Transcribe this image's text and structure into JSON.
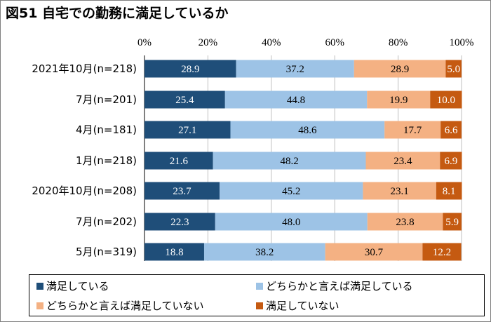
{
  "title": "図51 自宅での勤務に満足しているか",
  "chart_data": {
    "type": "bar",
    "orientation": "horizontal",
    "stacked": "percent",
    "title": "図51 自宅での勤務に満足しているか",
    "categories": [
      "2021年10月(n=218)",
      "7月(n=201)",
      "4月(n=181)",
      "1月(n=218)",
      "2020年10月(n=208)",
      "7月(n=202)",
      "5月(n=319)"
    ],
    "x_ticks": [
      "0%",
      "20%",
      "40%",
      "60%",
      "80%",
      "100%"
    ],
    "xlim": [
      0,
      100
    ],
    "grid": "vertical",
    "legend_position": "bottom",
    "series": [
      {
        "name": "満足している",
        "color": "#1f4e79",
        "label_color": "#ffffff",
        "values": [
          28.9,
          25.4,
          27.1,
          21.6,
          23.7,
          22.3,
          18.8
        ]
      },
      {
        "name": "どちらかと言えば満足している",
        "color": "#9dc3e6",
        "label_color": "#000000",
        "values": [
          37.2,
          44.8,
          48.6,
          48.2,
          45.2,
          48.0,
          38.2
        ]
      },
      {
        "name": "どちらかと言えば満足していない",
        "color": "#f4b183",
        "label_color": "#000000",
        "values": [
          28.9,
          19.9,
          17.7,
          23.4,
          23.1,
          23.8,
          30.7
        ]
      },
      {
        "name": "満足していない",
        "color": "#c55a11",
        "label_color": "#ffffff",
        "values": [
          5.0,
          10.0,
          6.6,
          6.9,
          8.1,
          5.9,
          12.2
        ]
      }
    ]
  }
}
